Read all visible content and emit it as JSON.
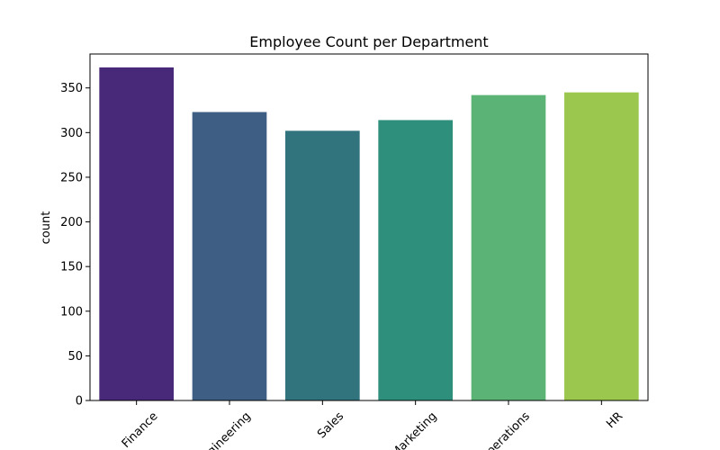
{
  "chart_data": {
    "type": "bar",
    "title": "Employee Count per Department",
    "xlabel": "",
    "ylabel": "count",
    "categories": [
      "Finance",
      "Engineering",
      "Sales",
      "Marketing",
      "Operations",
      "HR"
    ],
    "values": [
      373,
      323,
      302,
      314,
      342,
      345
    ],
    "colors": [
      "#482878",
      "#3e5e84",
      "#32747e",
      "#2e8f7c",
      "#5bb375",
      "#9bc74e"
    ],
    "ylim": [
      0,
      388
    ],
    "yticks": [
      0,
      50,
      100,
      150,
      200,
      250,
      300,
      350
    ],
    "grid": false,
    "legend": "none"
  }
}
